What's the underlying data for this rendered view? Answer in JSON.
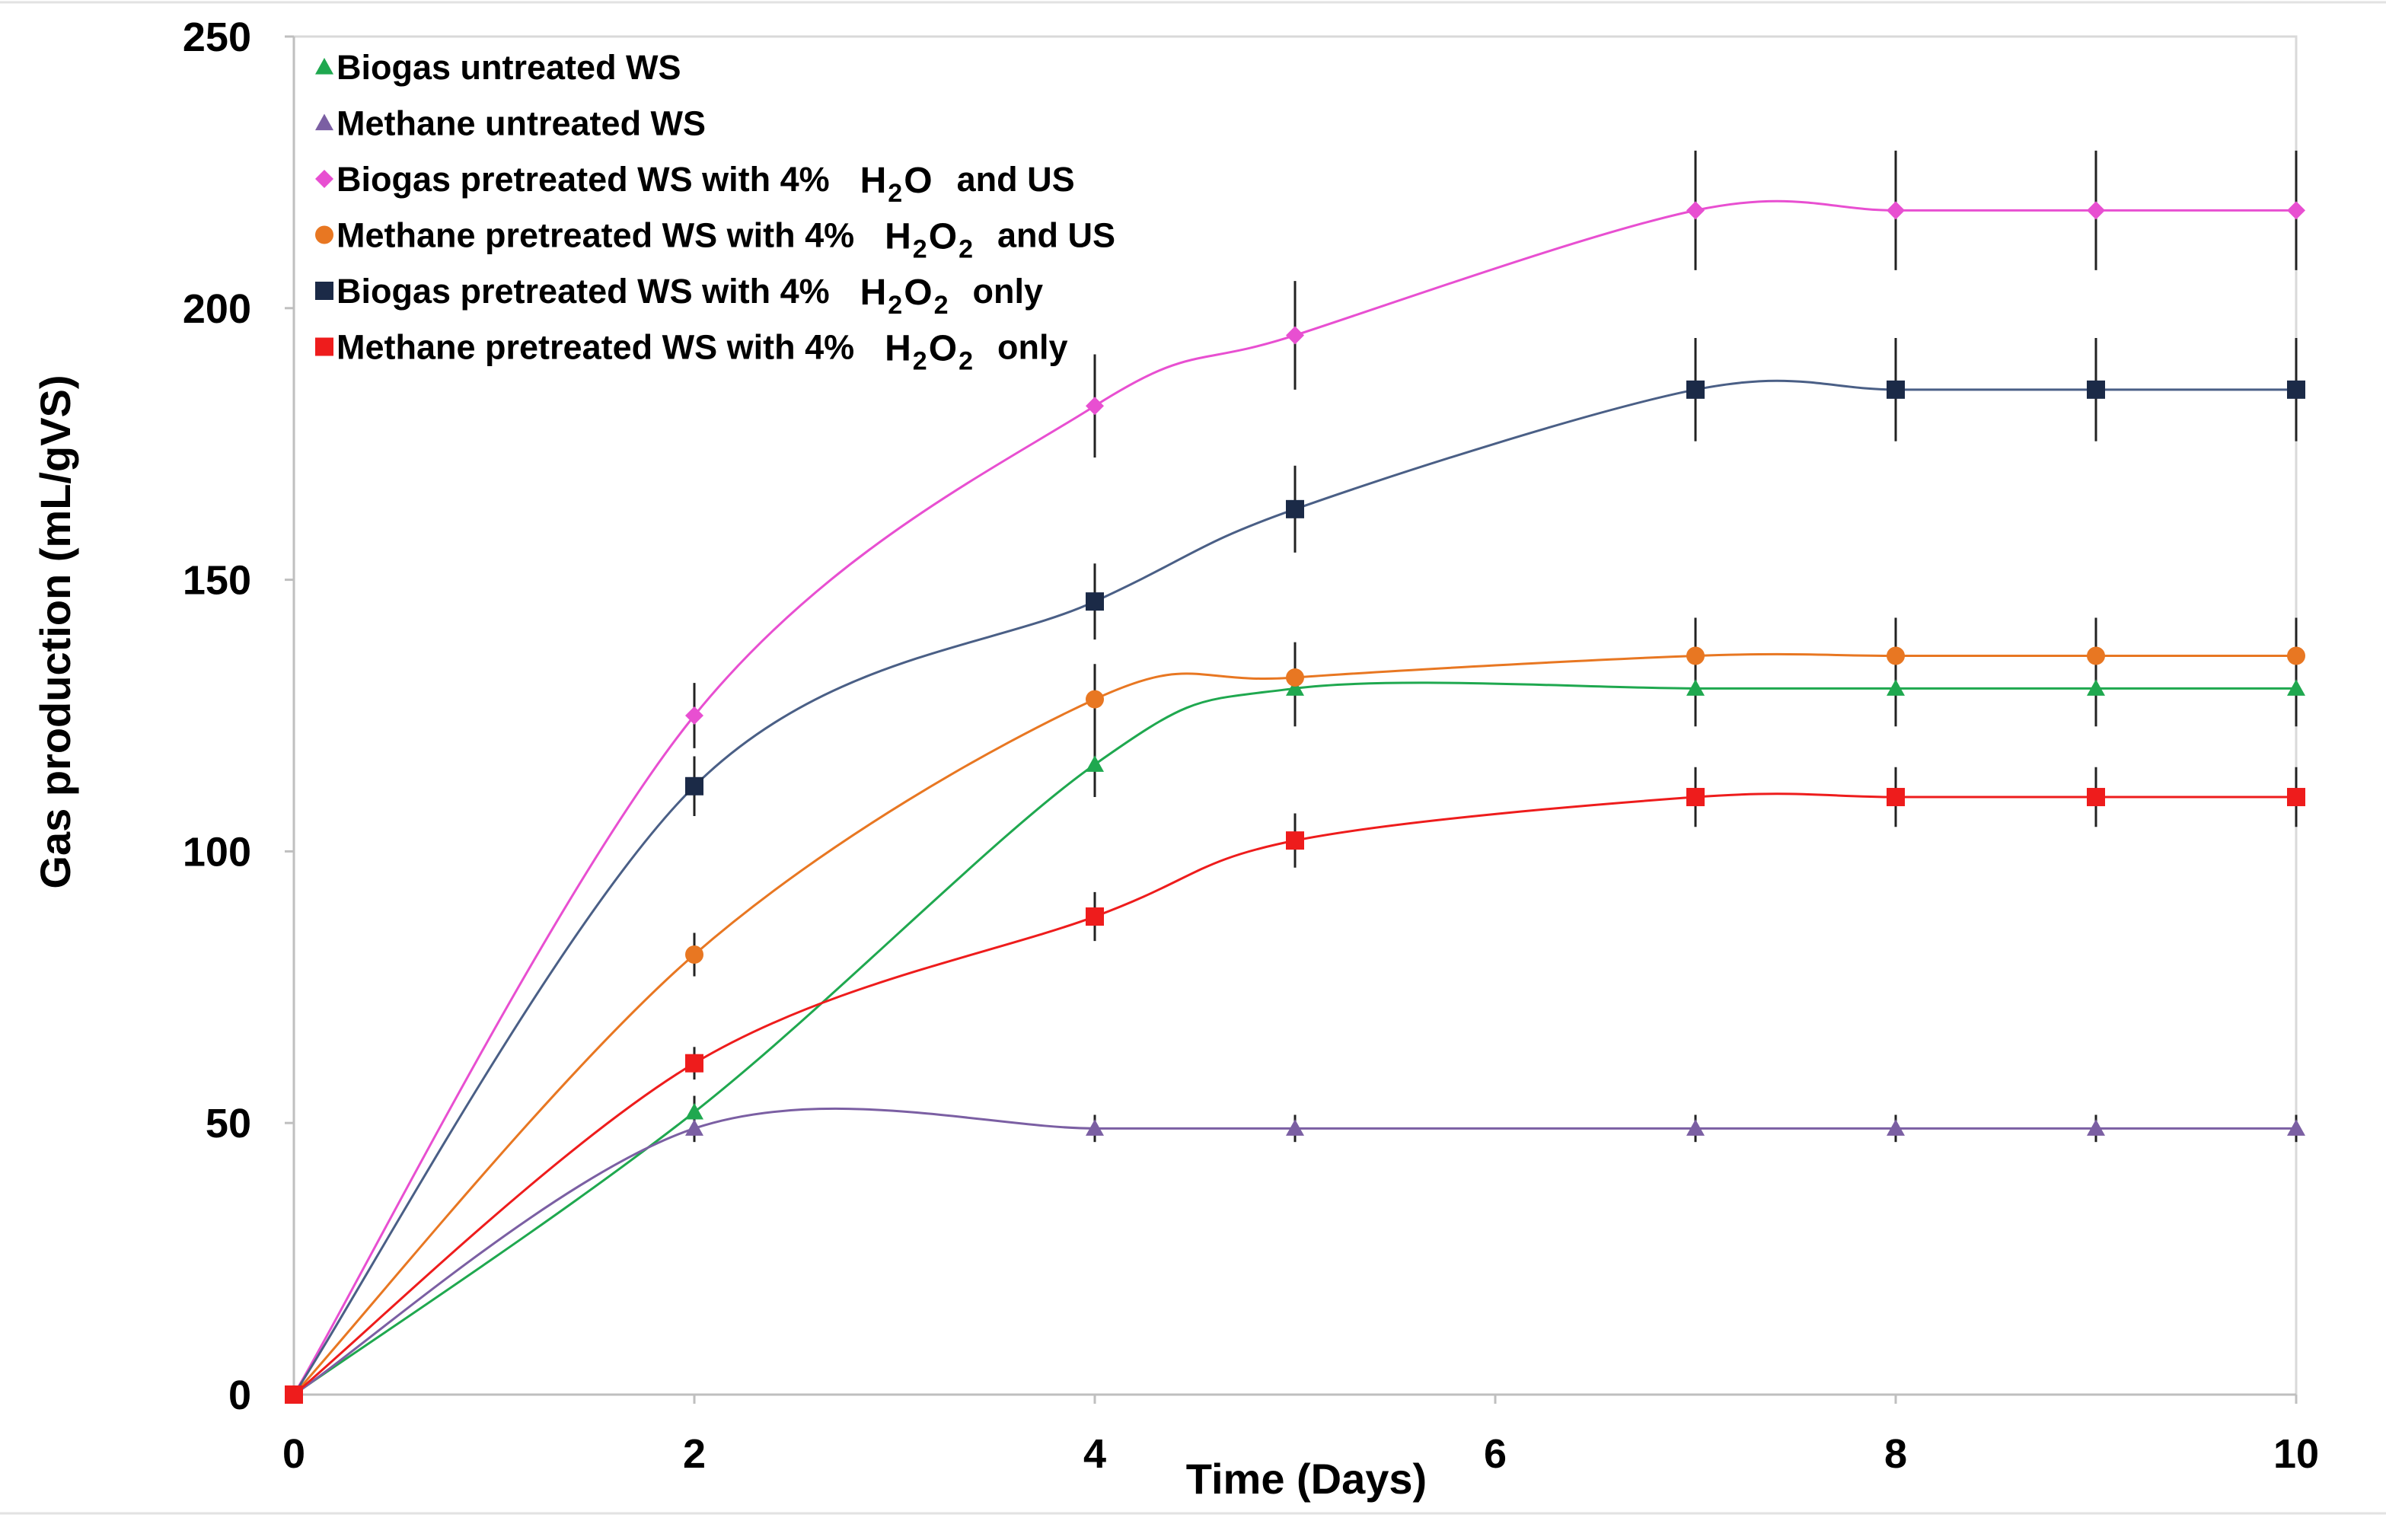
{
  "chart_data": {
    "type": "line",
    "title": "",
    "xlabel": "Time (Days)",
    "ylabel": "Gas production (mL/gVS)",
    "xlim": [
      0,
      10
    ],
    "ylim": [
      0,
      250
    ],
    "xticks": [
      0,
      2,
      4,
      6,
      8,
      10
    ],
    "yticks": [
      0,
      50,
      100,
      150,
      200,
      250
    ],
    "grid": false,
    "legend_position": "top-left",
    "x": [
      0,
      2,
      4,
      5,
      7,
      8,
      9,
      10
    ],
    "series": [
      {
        "name": "Biogas  untreated WS",
        "chem_text": "",
        "chem_sub": "",
        "suffix": "",
        "marker": "triangle",
        "color": "#1fa84f",
        "values": [
          0,
          52,
          116,
          130,
          130,
          130,
          130,
          130
        ],
        "errors": [
          0,
          3,
          6,
          7,
          7,
          7,
          7,
          7
        ]
      },
      {
        "name": "Methane untreated WS",
        "chem_text": "",
        "chem_sub": "",
        "suffix": "",
        "marker": "triangle",
        "color": "#7b5fa3",
        "values": [
          0,
          49,
          49,
          49,
          49,
          49,
          49,
          49
        ],
        "errors": [
          0,
          2.5,
          2.5,
          2.5,
          2.5,
          2.5,
          2.5,
          2.5
        ]
      },
      {
        "name": "Biogas pretreated WS with 4%",
        "chem_text": "H",
        "chem_sub": "2",
        "chem_text2": "O",
        "chem_sub2": "",
        "suffix": "and US",
        "marker": "diamond",
        "color": "#e84fd1",
        "values": [
          0,
          125,
          182,
          195,
          218,
          218,
          218,
          218
        ],
        "errors": [
          0,
          6,
          9.5,
          10,
          11,
          11,
          11,
          11
        ]
      },
      {
        "name": "Methane pretreated WS with 4%",
        "chem_text": "H",
        "chem_sub": "2",
        "chem_text2": "O",
        "chem_sub2": "2",
        "suffix": "and US",
        "marker": "circle",
        "color": "#e87722",
        "values": [
          0,
          81,
          128,
          132,
          136,
          136,
          136,
          136
        ],
        "errors": [
          0,
          4,
          6.5,
          6.5,
          7,
          7,
          7,
          7
        ]
      },
      {
        "name": "Biogas pretreated WS with 4%",
        "chem_text": "H",
        "chem_sub": "2",
        "chem_text2": "O",
        "chem_sub2": "2",
        "suffix": "only",
        "marker": "square",
        "color": "#1b2a47",
        "line_color": "#4a5f86",
        "values": [
          0,
          112,
          146,
          163,
          185,
          185,
          185,
          185
        ],
        "errors": [
          0,
          5.5,
          7,
          8,
          9.5,
          9.5,
          9.5,
          9.5
        ]
      },
      {
        "name": "Methane pretreated WS with 4%",
        "chem_text": "H",
        "chem_sub": "2",
        "chem_text2": "O",
        "chem_sub2": "2",
        "suffix": "only",
        "marker": "square",
        "color": "#ee1c1c",
        "values": [
          0,
          61,
          88,
          102,
          110,
          110,
          110,
          110
        ],
        "errors": [
          0,
          3,
          4.5,
          5,
          5.5,
          5.5,
          5.5,
          5.5
        ]
      }
    ]
  }
}
